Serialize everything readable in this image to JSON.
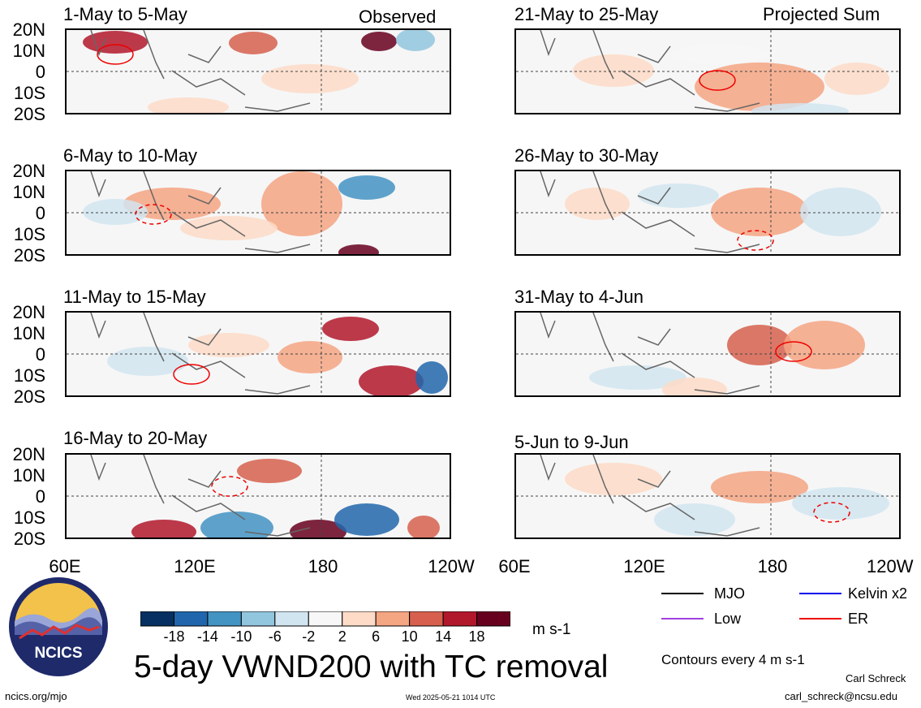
{
  "panels_observed": [
    "1-May to 5-May",
    "6-May to 10-May",
    "11-May to 15-May",
    "16-May to 20-May"
  ],
  "panels_projected": [
    "21-May to 25-May",
    "26-May to 30-May",
    "31-May to 4-Jun",
    "5-Jun to 9-Jun"
  ],
  "section_labels": {
    "observed": "Observed",
    "projected": "Projected Sum"
  },
  "y_labels": [
    "20N",
    "10N",
    "0",
    "10S",
    "20S"
  ],
  "x_labels": [
    "60E",
    "120E",
    "180",
    "120W"
  ],
  "colorbar": {
    "ticks": [
      "-18",
      "-14",
      "-10",
      "-6",
      "-2",
      "2",
      "6",
      "10",
      "14",
      "18"
    ],
    "colors": [
      "#053061",
      "#2166ac",
      "#4393c3",
      "#92c5de",
      "#d1e5f0",
      "#f7f7f7",
      "#fddbc7",
      "#f4a582",
      "#d6604d",
      "#b2182b",
      "#67001f"
    ],
    "units": "m s-1"
  },
  "title": "5-day VWND200 with TC removal",
  "legend": {
    "items": [
      {
        "label": "MJO",
        "color": "#000000"
      },
      {
        "label": "Kelvin x2",
        "color": "#0000ee"
      },
      {
        "label": "Low",
        "color": "#a040e0"
      },
      {
        "label": "ER",
        "color": "#ee0000"
      }
    ],
    "contours_note": "Contours every 4 m s-1"
  },
  "logo_text": "NCICS",
  "footer": {
    "url": "ncics.org/mjo",
    "timestamp": "Wed 2025-05-21 1014 UTC",
    "author": "Carl Schreck",
    "email": "carl_schreck@ncsu.edu"
  }
}
